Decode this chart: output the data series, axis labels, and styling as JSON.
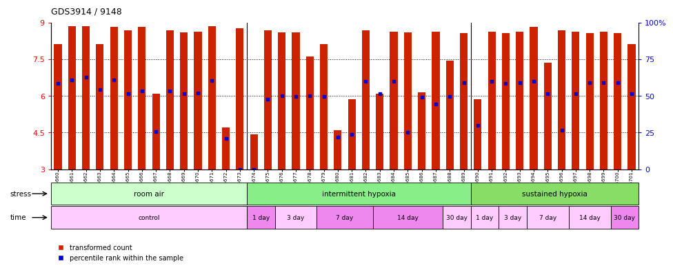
{
  "title": "GDS3914 / 9148",
  "gsm_labels": [
    "GSM215660",
    "GSM215661",
    "GSM215662",
    "GSM215663",
    "GSM215664",
    "GSM215665",
    "GSM215666",
    "GSM215667",
    "GSM215668",
    "GSM215669",
    "GSM215670",
    "GSM215671",
    "GSM215672",
    "GSM215673",
    "GSM215674",
    "GSM215675",
    "GSM215676",
    "GSM215677",
    "GSM215678",
    "GSM215679",
    "GSM215680",
    "GSM215681",
    "GSM215682",
    "GSM215683",
    "GSM215684",
    "GSM215685",
    "GSM215686",
    "GSM215687",
    "GSM215688",
    "GSM215689",
    "GSM215690",
    "GSM215691",
    "GSM215692",
    "GSM215693",
    "GSM215694",
    "GSM215695",
    "GSM215696",
    "GSM215697",
    "GSM215698",
    "GSM215699",
    "GSM215700",
    "GSM215701"
  ],
  "bar_values": [
    8.1,
    8.85,
    8.85,
    8.1,
    8.82,
    8.68,
    8.82,
    6.1,
    8.68,
    8.6,
    8.62,
    8.85,
    4.7,
    8.75,
    4.42,
    8.68,
    8.58,
    8.58,
    7.62,
    8.12,
    4.58,
    5.85,
    8.68,
    6.1,
    8.62,
    8.6,
    6.15,
    8.62,
    7.45,
    8.55,
    5.85,
    8.62,
    8.55,
    8.62,
    8.82,
    7.35,
    8.68,
    8.62,
    8.55,
    8.62,
    8.55,
    8.1
  ],
  "percentile_values": [
    6.5,
    6.65,
    6.75,
    6.25,
    6.65,
    6.1,
    6.2,
    4.55,
    6.2,
    6.1,
    6.12,
    6.62,
    4.25,
    3.0,
    3.0,
    5.85,
    6.0,
    5.97,
    6.0,
    5.97,
    4.3,
    4.42,
    6.58,
    6.08,
    6.58,
    4.5,
    5.95,
    5.65,
    5.98,
    6.55,
    4.78,
    6.58,
    6.5,
    6.55,
    6.6,
    6.1,
    4.6,
    6.08,
    6.55,
    6.55,
    6.55,
    6.08
  ],
  "ylim_min": 3,
  "ylim_max": 9,
  "yticks": [
    3,
    4.5,
    6,
    7.5,
    9
  ],
  "right_yticks": [
    0,
    25,
    50,
    75,
    100
  ],
  "bar_color": "#CC2200",
  "percentile_color": "#0000CC",
  "stress_groups": [
    {
      "label": "room air",
      "start": 0,
      "end": 14,
      "color": "#CCFFCC"
    },
    {
      "label": "intermittent hypoxia",
      "start": 14,
      "end": 30,
      "color": "#88EE88"
    },
    {
      "label": "sustained hypoxia",
      "start": 30,
      "end": 42,
      "color": "#88DD66"
    }
  ],
  "time_groups": [
    {
      "label": "control",
      "start": 0,
      "end": 14,
      "color": "#FFCCFF"
    },
    {
      "label": "1 day",
      "start": 14,
      "end": 16,
      "color": "#EE88EE"
    },
    {
      "label": "3 day",
      "start": 16,
      "end": 19,
      "color": "#FFCCFF"
    },
    {
      "label": "7 day",
      "start": 19,
      "end": 23,
      "color": "#EE88EE"
    },
    {
      "label": "14 day",
      "start": 23,
      "end": 28,
      "color": "#EE88EE"
    },
    {
      "label": "30 day",
      "start": 28,
      "end": 30,
      "color": "#FFCCFF"
    },
    {
      "label": "1 day",
      "start": 30,
      "end": 32,
      "color": "#FFCCFF"
    },
    {
      "label": "3 day",
      "start": 32,
      "end": 34,
      "color": "#FFCCFF"
    },
    {
      "label": "7 day",
      "start": 34,
      "end": 37,
      "color": "#FFCCFF"
    },
    {
      "label": "14 day",
      "start": 37,
      "end": 40,
      "color": "#FFCCFF"
    },
    {
      "label": "30 day",
      "start": 40,
      "end": 42,
      "color": "#EE88EE"
    }
  ],
  "group_separators": [
    13.5,
    29.5
  ],
  "dotted_lines": [
    4.5,
    6.0,
    7.5
  ]
}
